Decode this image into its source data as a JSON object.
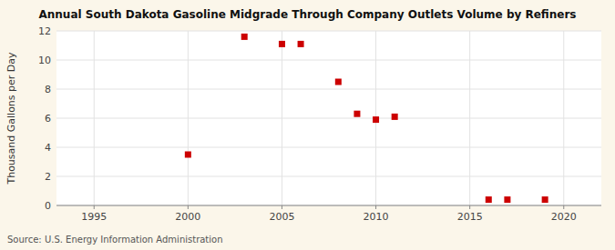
{
  "chart_data": {
    "type": "scatter",
    "title": "Annual South Dakota Gasoline Midgrade Through Company Outlets Volume by Refiners",
    "ylabel": "Thousand Gallons per Day",
    "source": "Source: U.S. Energy Information Administration",
    "x": [
      2000,
      2003,
      2005,
      2006,
      2008,
      2009,
      2010,
      2011,
      2016,
      2017,
      2019
    ],
    "values": [
      3.5,
      11.6,
      11.1,
      11.1,
      8.5,
      6.3,
      5.9,
      6.1,
      0.4,
      0.4,
      0.4
    ],
    "color": "#cc0000",
    "marker": "square",
    "xlim": [
      1993,
      2022
    ],
    "ylim": [
      0,
      12
    ],
    "xticks": [
      1995,
      2000,
      2005,
      2010,
      2015,
      2020
    ],
    "yticks": [
      0,
      2,
      4,
      6,
      8,
      10,
      12
    ],
    "grid": true
  }
}
